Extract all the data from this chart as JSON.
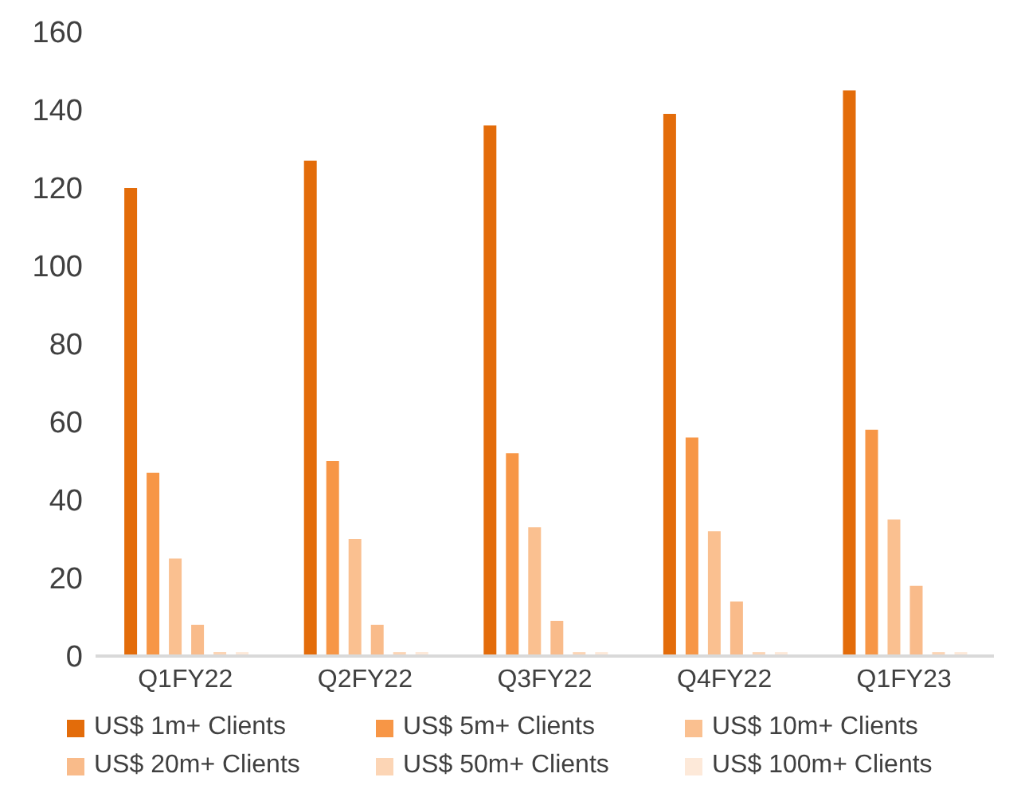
{
  "chart_data": {
    "type": "bar",
    "categories": [
      "Q1FY22",
      "Q2FY22",
      "Q3FY22",
      "Q4FY22",
      "Q1FY23"
    ],
    "series": [
      {
        "name": "US$ 1m+ Clients",
        "color": "#e36c0a",
        "values": [
          120,
          127,
          136,
          139,
          145
        ]
      },
      {
        "name": "US$ 5m+ Clients",
        "color": "#f79646",
        "values": [
          47,
          50,
          52,
          56,
          58
        ]
      },
      {
        "name": "US$ 10m+ Clients",
        "color": "#fac090",
        "values": [
          25,
          30,
          33,
          32,
          35
        ]
      },
      {
        "name": "US$ 20m+ Clients",
        "color": "#f9bb8a",
        "values": [
          8,
          8,
          9,
          14,
          18
        ]
      },
      {
        "name": "US$ 50m+ Clients",
        "color": "#fcd5b5",
        "values": [
          1,
          1,
          1,
          1,
          1
        ]
      },
      {
        "name": "US$ 100m+ Clients",
        "color": "#fde9d9",
        "values": [
          1,
          1,
          1,
          1,
          1
        ]
      }
    ],
    "ylim": [
      0,
      160
    ],
    "yticks": [
      0,
      20,
      40,
      60,
      80,
      100,
      120,
      140,
      160
    ],
    "grid": false,
    "legend": "bottom"
  }
}
